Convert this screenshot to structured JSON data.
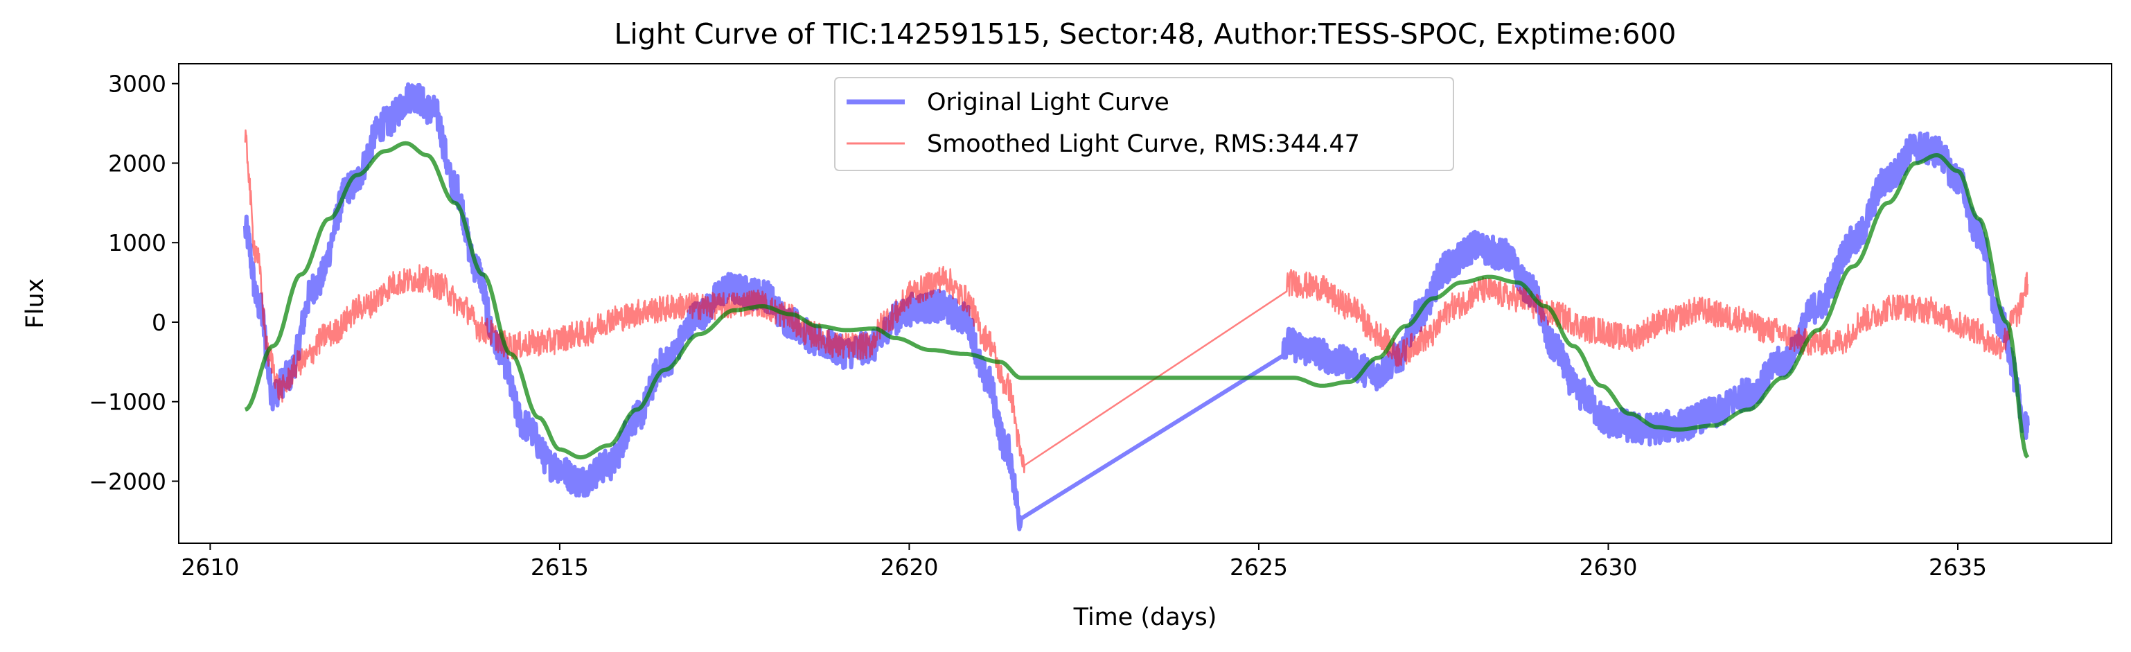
{
  "chart_data": {
    "type": "line",
    "title": "Light Curve of TIC:142591515, Sector:48, Author:TESS-SPOC, Exptime:600",
    "xlabel": "Time (days)",
    "ylabel": "Flux",
    "xlim": [
      2609.55,
      2637.2
    ],
    "ylim": [
      -2780,
      3250
    ],
    "xticks": [
      2610,
      2615,
      2620,
      2625,
      2630,
      2635
    ],
    "yticks": [
      -2000,
      -1000,
      0,
      1000,
      2000,
      3000
    ],
    "xtick_labels": [
      "2610",
      "2615",
      "2620",
      "2625",
      "2630",
      "2635"
    ],
    "ytick_labels": [
      "−2000",
      "−1000",
      "0",
      "1000",
      "2000",
      "3000"
    ],
    "grid": false,
    "legend_position": "top-center",
    "series": [
      {
        "name": "Original Light Curve",
        "color": "#0000ff",
        "noise": 200,
        "points": [
          [
            2610.5,
            1150
          ],
          [
            2610.7,
            200
          ],
          [
            2610.9,
            -900
          ],
          [
            2611.1,
            -700
          ],
          [
            2611.5,
            450
          ],
          [
            2612.0,
            1700
          ],
          [
            2612.5,
            2500
          ],
          [
            2612.9,
            2850
          ],
          [
            2613.2,
            2650
          ],
          [
            2613.5,
            1700
          ],
          [
            2613.8,
            700
          ],
          [
            2614.1,
            -300
          ],
          [
            2614.5,
            -1300
          ],
          [
            2614.9,
            -1800
          ],
          [
            2615.3,
            -2000
          ],
          [
            2615.7,
            -1800
          ],
          [
            2616.1,
            -1200
          ],
          [
            2616.5,
            -500
          ],
          [
            2617.0,
            100
          ],
          [
            2617.4,
            420
          ],
          [
            2617.9,
            350
          ],
          [
            2618.3,
            0
          ],
          [
            2618.7,
            -250
          ],
          [
            2619.1,
            -380
          ],
          [
            2619.5,
            -300
          ],
          [
            2619.8,
            50
          ],
          [
            2620.1,
            180
          ],
          [
            2620.4,
            200
          ],
          [
            2620.8,
            50
          ],
          [
            2621.1,
            -700
          ],
          [
            2621.4,
            -1600
          ],
          [
            2621.6,
            -2470
          ],
          [
            2625.35,
            -250
          ],
          [
            2625.7,
            -350
          ],
          [
            2626.2,
            -500
          ],
          [
            2626.7,
            -650
          ],
          [
            2627.0,
            -450
          ],
          [
            2627.3,
            100
          ],
          [
            2627.7,
            700
          ],
          [
            2628.1,
            950
          ],
          [
            2628.5,
            850
          ],
          [
            2628.9,
            400
          ],
          [
            2629.2,
            -300
          ],
          [
            2629.6,
            -900
          ],
          [
            2630.0,
            -1250
          ],
          [
            2630.5,
            -1350
          ],
          [
            2631.0,
            -1300
          ],
          [
            2631.5,
            -1150
          ],
          [
            2632.0,
            -900
          ],
          [
            2632.5,
            -500
          ],
          [
            2633.0,
            200
          ],
          [
            2633.5,
            1000
          ],
          [
            2634.0,
            1800
          ],
          [
            2634.4,
            2200
          ],
          [
            2634.7,
            2150
          ],
          [
            2635.0,
            1800
          ],
          [
            2635.3,
            1100
          ],
          [
            2635.6,
            0
          ],
          [
            2636.0,
            -1300
          ]
        ]
      },
      {
        "name": "Smoothed Light Curve, RMS:344.47",
        "color": "#ff0000",
        "noise": 170,
        "points": [
          [
            2610.5,
            2250
          ],
          [
            2610.65,
            900
          ],
          [
            2610.85,
            -450
          ],
          [
            2611.0,
            -850
          ],
          [
            2611.3,
            -500
          ],
          [
            2611.7,
            -150
          ],
          [
            2612.2,
            200
          ],
          [
            2612.7,
            500
          ],
          [
            2613.0,
            550
          ],
          [
            2613.3,
            450
          ],
          [
            2613.6,
            200
          ],
          [
            2613.9,
            -100
          ],
          [
            2614.3,
            -300
          ],
          [
            2614.8,
            -250
          ],
          [
            2615.3,
            -150
          ],
          [
            2615.8,
            50
          ],
          [
            2616.3,
            150
          ],
          [
            2616.8,
            200
          ],
          [
            2617.3,
            200
          ],
          [
            2617.8,
            250
          ],
          [
            2618.2,
            100
          ],
          [
            2618.6,
            -150
          ],
          [
            2619.0,
            -300
          ],
          [
            2619.4,
            -300
          ],
          [
            2619.7,
            50
          ],
          [
            2620.1,
            400
          ],
          [
            2620.5,
            550
          ],
          [
            2620.8,
            300
          ],
          [
            2621.1,
            -200
          ],
          [
            2621.4,
            -800
          ],
          [
            2621.65,
            -1800
          ],
          [
            2625.4,
            500
          ],
          [
            2625.8,
            450
          ],
          [
            2626.3,
            200
          ],
          [
            2626.7,
            -150
          ],
          [
            2627.0,
            -400
          ],
          [
            2627.4,
            -200
          ],
          [
            2627.8,
            200
          ],
          [
            2628.2,
            400
          ],
          [
            2628.7,
            300
          ],
          [
            2629.2,
            100
          ],
          [
            2629.8,
            -100
          ],
          [
            2630.3,
            -200
          ],
          [
            2630.8,
            0
          ],
          [
            2631.3,
            150
          ],
          [
            2631.8,
            50
          ],
          [
            2632.3,
            -100
          ],
          [
            2632.8,
            -250
          ],
          [
            2633.3,
            -250
          ],
          [
            2633.7,
            50
          ],
          [
            2634.1,
            200
          ],
          [
            2634.6,
            150
          ],
          [
            2635.1,
            -50
          ],
          [
            2635.6,
            -300
          ],
          [
            2635.85,
            100
          ],
          [
            2636.0,
            480
          ]
        ]
      },
      {
        "name": "",
        "color": "#008000",
        "noise": 0,
        "points": [
          [
            2610.5,
            -1100
          ],
          [
            2610.9,
            -300
          ],
          [
            2611.3,
            600
          ],
          [
            2611.7,
            1300
          ],
          [
            2612.1,
            1850
          ],
          [
            2612.5,
            2150
          ],
          [
            2612.8,
            2250
          ],
          [
            2613.1,
            2100
          ],
          [
            2613.5,
            1500
          ],
          [
            2613.9,
            600
          ],
          [
            2614.3,
            -400
          ],
          [
            2614.7,
            -1200
          ],
          [
            2615.0,
            -1600
          ],
          [
            2615.3,
            -1700
          ],
          [
            2615.7,
            -1550
          ],
          [
            2616.1,
            -1100
          ],
          [
            2616.5,
            -600
          ],
          [
            2617.0,
            -150
          ],
          [
            2617.5,
            150
          ],
          [
            2617.9,
            200
          ],
          [
            2618.3,
            100
          ],
          [
            2618.7,
            -50
          ],
          [
            2619.1,
            -100
          ],
          [
            2619.5,
            -80
          ],
          [
            2619.8,
            -200
          ],
          [
            2620.3,
            -350
          ],
          [
            2620.8,
            -400
          ],
          [
            2621.3,
            -500
          ],
          [
            2621.6,
            -700
          ],
          [
            2625.2,
            -700
          ],
          [
            2625.5,
            -700
          ],
          [
            2625.9,
            -800
          ],
          [
            2626.3,
            -750
          ],
          [
            2626.7,
            -450
          ],
          [
            2627.1,
            -50
          ],
          [
            2627.5,
            300
          ],
          [
            2627.9,
            500
          ],
          [
            2628.3,
            570
          ],
          [
            2628.7,
            500
          ],
          [
            2629.1,
            200
          ],
          [
            2629.5,
            -300
          ],
          [
            2629.9,
            -800
          ],
          [
            2630.3,
            -1150
          ],
          [
            2630.7,
            -1320
          ],
          [
            2631.0,
            -1350
          ],
          [
            2631.5,
            -1300
          ],
          [
            2632.0,
            -1100
          ],
          [
            2632.5,
            -700
          ],
          [
            2633.0,
            -100
          ],
          [
            2633.5,
            700
          ],
          [
            2634.0,
            1500
          ],
          [
            2634.4,
            2000
          ],
          [
            2634.7,
            2100
          ],
          [
            2635.0,
            1900
          ],
          [
            2635.3,
            1300
          ],
          [
            2635.7,
            0
          ],
          [
            2636.0,
            -1700
          ]
        ]
      }
    ],
    "legend": [
      {
        "label": "Original Light Curve",
        "color": "#0000ff"
      },
      {
        "label": "Smoothed Light Curve, RMS:344.47",
        "color": "#ff0000"
      }
    ]
  }
}
